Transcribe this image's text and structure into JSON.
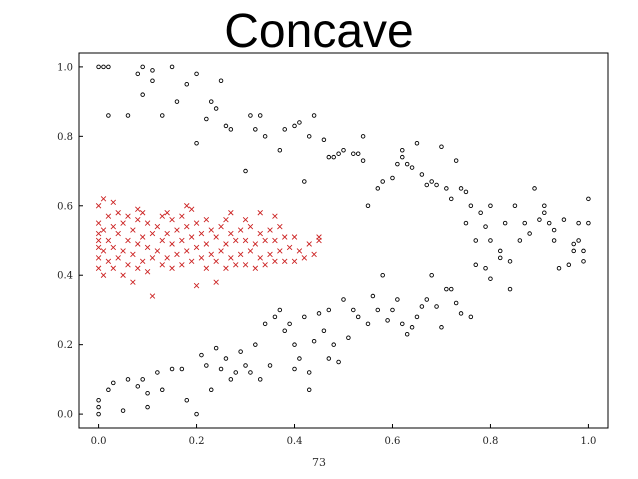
{
  "chart_data": {
    "type": "scatter",
    "title": "Concave",
    "xlabel": "73",
    "ylabel": "",
    "xlim": [
      -0.04,
      1.04
    ],
    "ylim": [
      -0.04,
      1.04
    ],
    "xticks": [
      "0.0",
      "0.2",
      "0.4",
      "0.6",
      "0.8",
      "1.0"
    ],
    "yticks": [
      "0.0",
      "0.2",
      "0.4",
      "0.6",
      "0.8",
      "1.0"
    ],
    "grid": false,
    "series": [
      {
        "marker": "o",
        "color": "#000000",
        "points": [
          [
            0.0,
            1.0
          ],
          [
            0.01,
            1.0
          ],
          [
            0.02,
            1.0
          ],
          [
            0.02,
            0.86
          ],
          [
            0.06,
            0.86
          ],
          [
            0.08,
            0.98
          ],
          [
            0.09,
            1.0
          ],
          [
            0.09,
            0.92
          ],
          [
            0.11,
            0.99
          ],
          [
            0.11,
            0.96
          ],
          [
            0.13,
            0.86
          ],
          [
            0.15,
            1.0
          ],
          [
            0.16,
            0.9
          ],
          [
            0.18,
            0.95
          ],
          [
            0.2,
            0.98
          ],
          [
            0.2,
            0.78
          ],
          [
            0.22,
            0.85
          ],
          [
            0.23,
            0.9
          ],
          [
            0.24,
            0.88
          ],
          [
            0.25,
            0.96
          ],
          [
            0.26,
            0.83
          ],
          [
            0.27,
            0.82
          ],
          [
            0.3,
            0.7
          ],
          [
            0.31,
            0.86
          ],
          [
            0.32,
            0.82
          ],
          [
            0.33,
            0.86
          ],
          [
            0.34,
            0.8
          ],
          [
            0.37,
            0.76
          ],
          [
            0.38,
            0.82
          ],
          [
            0.4,
            0.83
          ],
          [
            0.41,
            0.84
          ],
          [
            0.42,
            0.67
          ],
          [
            0.43,
            0.8
          ],
          [
            0.44,
            0.86
          ],
          [
            0.46,
            0.79
          ],
          [
            0.47,
            0.74
          ],
          [
            0.48,
            0.74
          ],
          [
            0.49,
            0.75
          ],
          [
            0.5,
            0.76
          ],
          [
            0.52,
            0.75
          ],
          [
            0.53,
            0.75
          ],
          [
            0.54,
            0.8
          ],
          [
            0.54,
            0.73
          ],
          [
            0.55,
            0.6
          ],
          [
            0.57,
            0.65
          ],
          [
            0.58,
            0.67
          ],
          [
            0.6,
            0.68
          ],
          [
            0.61,
            0.72
          ],
          [
            0.62,
            0.76
          ],
          [
            0.62,
            0.74
          ],
          [
            0.63,
            0.72
          ],
          [
            0.64,
            0.71
          ],
          [
            0.65,
            0.78
          ],
          [
            0.66,
            0.69
          ],
          [
            0.67,
            0.66
          ],
          [
            0.68,
            0.67
          ],
          [
            0.69,
            0.66
          ],
          [
            0.7,
            0.77
          ],
          [
            0.71,
            0.65
          ],
          [
            0.72,
            0.62
          ],
          [
            0.73,
            0.73
          ],
          [
            0.74,
            0.65
          ],
          [
            0.75,
            0.55
          ],
          [
            0.75,
            0.64
          ],
          [
            0.76,
            0.6
          ],
          [
            0.77,
            0.5
          ],
          [
            0.78,
            0.58
          ],
          [
            0.79,
            0.54
          ],
          [
            0.8,
            0.6
          ],
          [
            0.8,
            0.5
          ],
          [
            0.82,
            0.47
          ],
          [
            0.83,
            0.55
          ],
          [
            0.84,
            0.44
          ],
          [
            0.85,
            0.6
          ],
          [
            0.86,
            0.5
          ],
          [
            0.87,
            0.55
          ],
          [
            0.88,
            0.52
          ],
          [
            0.89,
            0.65
          ],
          [
            0.9,
            0.56
          ],
          [
            0.91,
            0.6
          ],
          [
            0.91,
            0.58
          ],
          [
            0.92,
            0.55
          ],
          [
            0.93,
            0.5
          ],
          [
            0.93,
            0.53
          ],
          [
            0.94,
            0.42
          ],
          [
            0.95,
            0.56
          ],
          [
            0.96,
            0.43
          ],
          [
            0.97,
            0.47
          ],
          [
            0.97,
            0.49
          ],
          [
            0.98,
            0.55
          ],
          [
            0.98,
            0.5
          ],
          [
            0.99,
            0.44
          ],
          [
            1.0,
            0.55
          ],
          [
            1.0,
            0.62
          ],
          [
            0.99,
            0.47
          ],
          [
            0.0,
            0.0
          ],
          [
            0.0,
            0.02
          ],
          [
            0.0,
            0.04
          ],
          [
            0.02,
            0.07
          ],
          [
            0.03,
            0.09
          ],
          [
            0.05,
            0.01
          ],
          [
            0.06,
            0.1
          ],
          [
            0.08,
            0.08
          ],
          [
            0.09,
            0.1
          ],
          [
            0.1,
            0.02
          ],
          [
            0.1,
            0.06
          ],
          [
            0.12,
            0.12
          ],
          [
            0.13,
            0.07
          ],
          [
            0.15,
            0.13
          ],
          [
            0.17,
            0.13
          ],
          [
            0.18,
            0.04
          ],
          [
            0.2,
            0.0
          ],
          [
            0.21,
            0.17
          ],
          [
            0.22,
            0.14
          ],
          [
            0.23,
            0.07
          ],
          [
            0.24,
            0.19
          ],
          [
            0.25,
            0.13
          ],
          [
            0.26,
            0.16
          ],
          [
            0.27,
            0.1
          ],
          [
            0.28,
            0.12
          ],
          [
            0.29,
            0.18
          ],
          [
            0.3,
            0.14
          ],
          [
            0.31,
            0.12
          ],
          [
            0.32,
            0.2
          ],
          [
            0.33,
            0.1
          ],
          [
            0.34,
            0.26
          ],
          [
            0.35,
            0.14
          ],
          [
            0.36,
            0.28
          ],
          [
            0.37,
            0.3
          ],
          [
            0.38,
            0.24
          ],
          [
            0.39,
            0.26
          ],
          [
            0.4,
            0.2
          ],
          [
            0.41,
            0.16
          ],
          [
            0.42,
            0.28
          ],
          [
            0.43,
            0.12
          ],
          [
            0.44,
            0.21
          ],
          [
            0.45,
            0.29
          ],
          [
            0.46,
            0.24
          ],
          [
            0.47,
            0.3
          ],
          [
            0.48,
            0.2
          ],
          [
            0.49,
            0.15
          ],
          [
            0.5,
            0.33
          ],
          [
            0.51,
            0.22
          ],
          [
            0.52,
            0.3
          ],
          [
            0.53,
            0.28
          ],
          [
            0.55,
            0.26
          ],
          [
            0.56,
            0.34
          ],
          [
            0.57,
            0.3
          ],
          [
            0.58,
            0.4
          ],
          [
            0.59,
            0.27
          ],
          [
            0.6,
            0.3
          ],
          [
            0.61,
            0.33
          ],
          [
            0.62,
            0.26
          ],
          [
            0.63,
            0.23
          ],
          [
            0.64,
            0.25
          ],
          [
            0.65,
            0.28
          ],
          [
            0.66,
            0.31
          ],
          [
            0.67,
            0.33
          ],
          [
            0.68,
            0.4
          ],
          [
            0.69,
            0.31
          ],
          [
            0.7,
            0.25
          ],
          [
            0.71,
            0.36
          ],
          [
            0.72,
            0.36
          ],
          [
            0.73,
            0.32
          ],
          [
            0.74,
            0.29
          ],
          [
            0.76,
            0.28
          ],
          [
            0.77,
            0.43
          ],
          [
            0.79,
            0.42
          ],
          [
            0.8,
            0.39
          ],
          [
            0.82,
            0.45
          ],
          [
            0.84,
            0.36
          ],
          [
            0.43,
            0.07
          ],
          [
            0.4,
            0.13
          ],
          [
            0.47,
            0.16
          ]
        ]
      },
      {
        "marker": "x",
        "color": "#cc2222",
        "points": [
          [
            0.0,
            0.42
          ],
          [
            0.0,
            0.45
          ],
          [
            0.0,
            0.48
          ],
          [
            0.0,
            0.5
          ],
          [
            0.0,
            0.52
          ],
          [
            0.0,
            0.55
          ],
          [
            0.0,
            0.6
          ],
          [
            0.01,
            0.4
          ],
          [
            0.01,
            0.47
          ],
          [
            0.01,
            0.53
          ],
          [
            0.01,
            0.62
          ],
          [
            0.02,
            0.44
          ],
          [
            0.02,
            0.5
          ],
          [
            0.02,
            0.57
          ],
          [
            0.03,
            0.42
          ],
          [
            0.03,
            0.48
          ],
          [
            0.03,
            0.54
          ],
          [
            0.04,
            0.45
          ],
          [
            0.04,
            0.52
          ],
          [
            0.04,
            0.58
          ],
          [
            0.05,
            0.4
          ],
          [
            0.05,
            0.47
          ],
          [
            0.05,
            0.55
          ],
          [
            0.06,
            0.43
          ],
          [
            0.06,
            0.5
          ],
          [
            0.06,
            0.57
          ],
          [
            0.07,
            0.38
          ],
          [
            0.07,
            0.46
          ],
          [
            0.07,
            0.53
          ],
          [
            0.08,
            0.42
          ],
          [
            0.08,
            0.49
          ],
          [
            0.08,
            0.56
          ],
          [
            0.09,
            0.44
          ],
          [
            0.09,
            0.51
          ],
          [
            0.09,
            0.58
          ],
          [
            0.1,
            0.41
          ],
          [
            0.1,
            0.48
          ],
          [
            0.1,
            0.55
          ],
          [
            0.11,
            0.34
          ],
          [
            0.11,
            0.45
          ],
          [
            0.11,
            0.52
          ],
          [
            0.12,
            0.47
          ],
          [
            0.12,
            0.54
          ],
          [
            0.13,
            0.43
          ],
          [
            0.13,
            0.5
          ],
          [
            0.13,
            0.57
          ],
          [
            0.14,
            0.45
          ],
          [
            0.14,
            0.52
          ],
          [
            0.15,
            0.42
          ],
          [
            0.15,
            0.49
          ],
          [
            0.15,
            0.56
          ],
          [
            0.16,
            0.46
          ],
          [
            0.16,
            0.53
          ],
          [
            0.17,
            0.43
          ],
          [
            0.17,
            0.5
          ],
          [
            0.17,
            0.57
          ],
          [
            0.18,
            0.47
          ],
          [
            0.18,
            0.54
          ],
          [
            0.19,
            0.44
          ],
          [
            0.19,
            0.51
          ],
          [
            0.19,
            0.59
          ],
          [
            0.2,
            0.37
          ],
          [
            0.2,
            0.48
          ],
          [
            0.2,
            0.55
          ],
          [
            0.21,
            0.45
          ],
          [
            0.21,
            0.52
          ],
          [
            0.22,
            0.42
          ],
          [
            0.22,
            0.49
          ],
          [
            0.22,
            0.56
          ],
          [
            0.23,
            0.46
          ],
          [
            0.23,
            0.53
          ],
          [
            0.24,
            0.38
          ],
          [
            0.24,
            0.44
          ],
          [
            0.24,
            0.51
          ],
          [
            0.25,
            0.47
          ],
          [
            0.25,
            0.54
          ],
          [
            0.26,
            0.42
          ],
          [
            0.26,
            0.49
          ],
          [
            0.27,
            0.45
          ],
          [
            0.27,
            0.52
          ],
          [
            0.27,
            0.58
          ],
          [
            0.28,
            0.43
          ],
          [
            0.28,
            0.5
          ],
          [
            0.29,
            0.46
          ],
          [
            0.29,
            0.53
          ],
          [
            0.3,
            0.43
          ],
          [
            0.3,
            0.5
          ],
          [
            0.3,
            0.56
          ],
          [
            0.31,
            0.47
          ],
          [
            0.31,
            0.54
          ],
          [
            0.32,
            0.42
          ],
          [
            0.32,
            0.49
          ],
          [
            0.33,
            0.45
          ],
          [
            0.33,
            0.52
          ],
          [
            0.34,
            0.43
          ],
          [
            0.34,
            0.5
          ],
          [
            0.35,
            0.46
          ],
          [
            0.35,
            0.53
          ],
          [
            0.36,
            0.44
          ],
          [
            0.36,
            0.5
          ],
          [
            0.37,
            0.47
          ],
          [
            0.37,
            0.54
          ],
          [
            0.38,
            0.44
          ],
          [
            0.38,
            0.51
          ],
          [
            0.39,
            0.48
          ],
          [
            0.4,
            0.44
          ],
          [
            0.4,
            0.51
          ],
          [
            0.41,
            0.47
          ],
          [
            0.42,
            0.45
          ],
          [
            0.43,
            0.49
          ],
          [
            0.44,
            0.46
          ],
          [
            0.45,
            0.5
          ],
          [
            0.45,
            0.51
          ],
          [
            0.18,
            0.6
          ],
          [
            0.14,
            0.58
          ],
          [
            0.26,
            0.56
          ],
          [
            0.03,
            0.61
          ],
          [
            0.08,
            0.59
          ],
          [
            0.33,
            0.58
          ],
          [
            0.36,
            0.57
          ]
        ]
      }
    ]
  }
}
